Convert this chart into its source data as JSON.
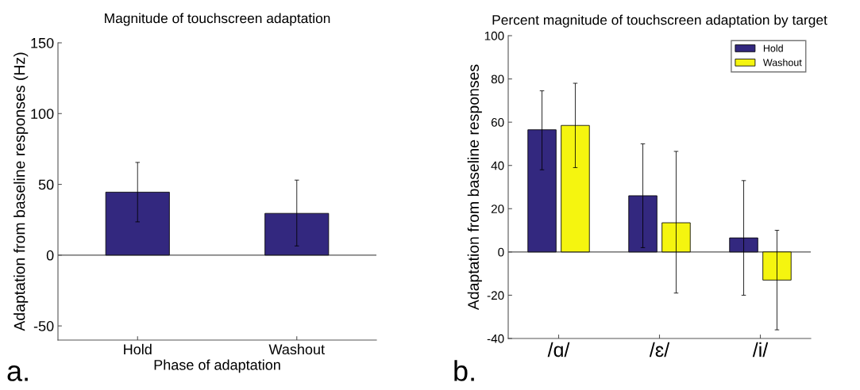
{
  "chart_data": [
    {
      "type": "bar",
      "title": "Magnitude of touchscreen adaptation",
      "xlabel": "Phase of adaptation",
      "ylabel": "Adaptation from baseline responses (Hz)",
      "categories": [
        "Hold",
        "Washout"
      ],
      "series": [
        {
          "color": "#33287f",
          "values": [
            44.5,
            29.5
          ],
          "errors": [
            [
              23.5,
              65.5
            ],
            [
              6.5,
              53
            ]
          ]
        }
      ],
      "ylim": [
        -60,
        150
      ],
      "yticks": [
        -50,
        0,
        50,
        100,
        150
      ],
      "grid": false,
      "ref_lines": [
        {
          "axis": "y",
          "value": 0,
          "color": "#555555"
        }
      ],
      "legend": false,
      "annotations": [
        "a."
      ]
    },
    {
      "type": "bar",
      "title": "Percent magnitude of touchscreen adaptation by target",
      "ylabel": "Adaptation from baseline responses",
      "categories": [
        "/ɑ/",
        "/ɛ/",
        "/i/"
      ],
      "series": [
        {
          "name": "Hold",
          "color": "#33287f",
          "values": [
            56.5,
            26,
            6.5
          ],
          "errors": [
            [
              38,
              74.5
            ],
            [
              2,
              50
            ],
            [
              -20,
              33
            ]
          ]
        },
        {
          "name": "Washout",
          "color": "#f5f50f",
          "values": [
            58.5,
            13.5,
            -13
          ],
          "errors": [
            [
              39,
              78
            ],
            [
              -19,
              46.5
            ],
            [
              -36,
              10
            ]
          ]
        }
      ],
      "ylim": [
        -40,
        100
      ],
      "yticks": [
        -40,
        -20,
        0,
        20,
        40,
        60,
        80,
        100
      ],
      "grid": false,
      "ref_lines": [
        {
          "axis": "y",
          "value": 0,
          "color": "#555555"
        }
      ],
      "legend": "top right",
      "annotations": [
        "b."
      ]
    }
  ]
}
